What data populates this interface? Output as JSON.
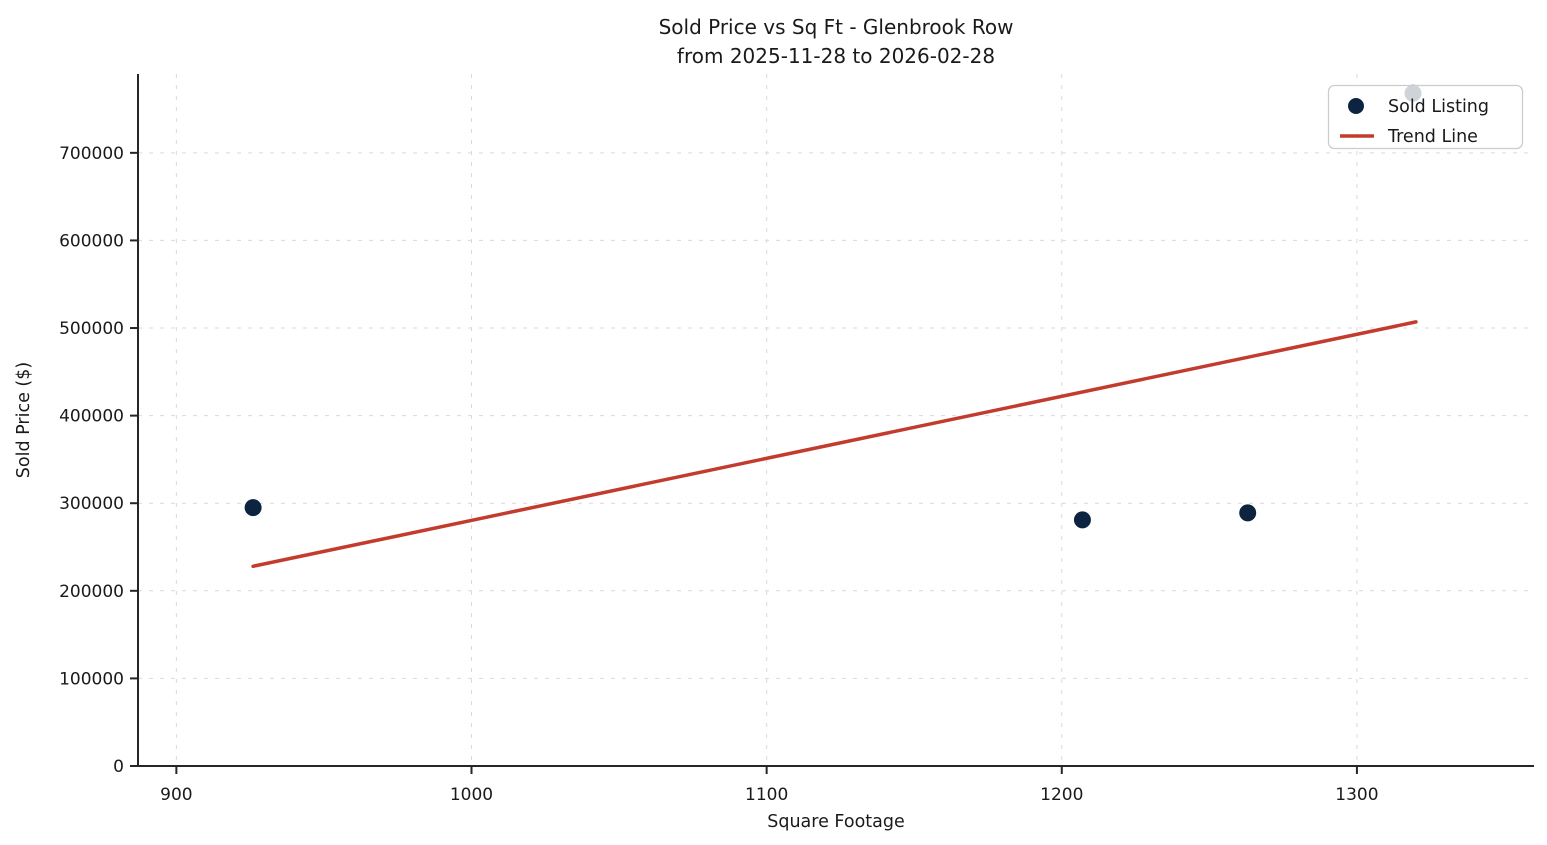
{
  "chart_data": {
    "type": "scatter",
    "title_line1": "Sold Price vs Sq Ft - Glenbrook Row",
    "title_line2": "from 2025-11-28 to 2026-02-28",
    "xlabel": "Square Footage",
    "ylabel": "Sold Price ($)",
    "xlim": [
      887,
      1360
    ],
    "ylim": [
      0,
      790000
    ],
    "x_ticks": [
      900,
      1000,
      1100,
      1200,
      1300
    ],
    "y_ticks": [
      0,
      100000,
      200000,
      300000,
      400000,
      500000,
      600000,
      700000
    ],
    "grid": true,
    "grid_color": "#d9d9d9",
    "axis_color": "#262626",
    "legend_position": "upper right",
    "series": [
      {
        "name": "Sold Listing",
        "kind": "scatter",
        "color": "#0d2440",
        "marker_radius": 8.5,
        "points": [
          {
            "sqft": 926,
            "price": 295000
          },
          {
            "sqft": 1207,
            "price": 281000
          },
          {
            "sqft": 1263,
            "price": 289000
          },
          {
            "sqft": 1319,
            "price": 768000
          }
        ]
      },
      {
        "name": "Trend Line",
        "kind": "line",
        "color": "#c23b2d",
        "line_width": 3.5,
        "points": [
          {
            "sqft": 926,
            "price": 228000
          },
          {
            "sqft": 1320,
            "price": 507000
          }
        ]
      }
    ],
    "legend": {
      "entries": [
        {
          "label": "Sold Listing",
          "marker": "circle",
          "color": "#0d2440"
        },
        {
          "label": "Trend Line",
          "marker": "line",
          "color": "#c23b2d"
        }
      ]
    }
  }
}
